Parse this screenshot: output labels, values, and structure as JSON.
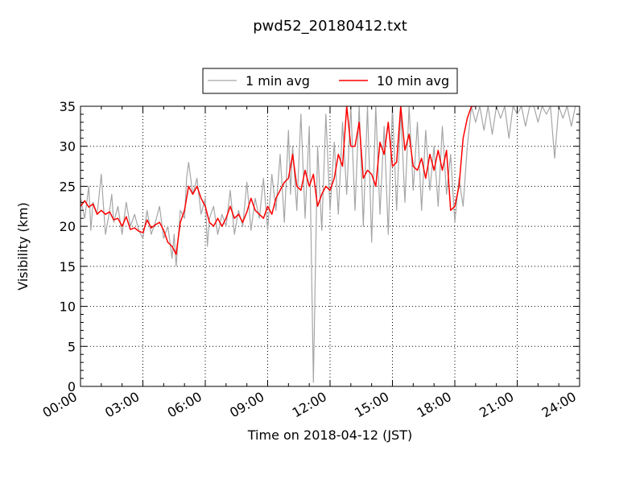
{
  "chart_data": {
    "type": "line",
    "title": "pwd52_20180412.txt",
    "xlabel": "Time on 2018-04-12 (JST)",
    "ylabel": "Visibility (km)",
    "xlim": [
      0,
      24
    ],
    "ylim": [
      0,
      35
    ],
    "x_unit": "hours",
    "grid": true,
    "legend": "top-center",
    "x_ticks": [
      0,
      3,
      6,
      9,
      12,
      15,
      18,
      21,
      24
    ],
    "x_tick_labels": [
      "00:00",
      "03:00",
      "06:00",
      "09:00",
      "12:00",
      "15:00",
      "18:00",
      "21:00",
      "24:00"
    ],
    "y_ticks": [
      0,
      5,
      10,
      15,
      20,
      25,
      30,
      35
    ],
    "y_tick_labels": [
      "0",
      "5",
      "10",
      "15",
      "20",
      "25",
      "30",
      "35"
    ],
    "series": [
      {
        "name": "1 min avg",
        "color": "#a6a6a6",
        "x": [
          0.0,
          0.2,
          0.4,
          0.5,
          0.6,
          0.8,
          1.0,
          1.2,
          1.4,
          1.5,
          1.6,
          1.8,
          2.0,
          2.2,
          2.4,
          2.6,
          2.8,
          3.0,
          3.2,
          3.4,
          3.6,
          3.8,
          4.0,
          4.2,
          4.4,
          4.5,
          4.6,
          4.8,
          5.0,
          5.1,
          5.2,
          5.4,
          5.6,
          5.8,
          6.0,
          6.1,
          6.2,
          6.4,
          6.6,
          6.8,
          7.0,
          7.2,
          7.4,
          7.6,
          7.8,
          8.0,
          8.2,
          8.4,
          8.6,
          8.8,
          9.0,
          9.2,
          9.4,
          9.6,
          9.8,
          10.0,
          10.1,
          10.2,
          10.4,
          10.6,
          10.8,
          11.0,
          11.2,
          11.4,
          11.6,
          11.8,
          12.0,
          12.2,
          12.4,
          12.6,
          12.8,
          13.0,
          13.2,
          13.4,
          13.6,
          13.8,
          14.0,
          14.2,
          14.4,
          14.6,
          14.8,
          15.0,
          15.2,
          15.4,
          15.6,
          15.8,
          16.0,
          16.2,
          16.4,
          16.6,
          16.8,
          17.0,
          17.2,
          17.4,
          17.6,
          17.8,
          18.0,
          18.2,
          18.4,
          18.6,
          18.8,
          19.0,
          19.2,
          19.4,
          19.6,
          19.8,
          20.0,
          20.2,
          20.4,
          20.6,
          20.8,
          21.0,
          21.2,
          21.4,
          21.6,
          21.8,
          22.0,
          22.2,
          22.4,
          22.6,
          22.8,
          23.0,
          23.2,
          23.4,
          23.6,
          23.8,
          24.0
        ],
        "y": [
          23.5,
          21.0,
          25.0,
          19.5,
          23.0,
          21.5,
          26.5,
          19.0,
          22.0,
          24.0,
          20.5,
          22.5,
          19.0,
          23.0,
          20.0,
          21.5,
          19.5,
          18.5,
          22.0,
          19.0,
          20.5,
          22.5,
          18.5,
          20.0,
          16.0,
          19.0,
          15.0,
          22.0,
          21.0,
          26.0,
          28.0,
          24.0,
          26.0,
          21.5,
          23.5,
          17.5,
          21.0,
          22.5,
          19.0,
          21.5,
          20.0,
          24.5,
          19.0,
          22.0,
          20.0,
          25.5,
          19.5,
          23.5,
          21.0,
          26.0,
          19.5,
          26.5,
          22.0,
          29.0,
          20.5,
          32.0,
          24.0,
          30.0,
          22.0,
          34.0,
          21.0,
          32.5,
          0.5,
          30.0,
          19.5,
          34.0,
          22.0,
          30.5,
          21.5,
          33.0,
          24.0,
          35.0,
          22.0,
          35.0,
          20.0,
          35.0,
          18.0,
          35.0,
          21.5,
          32.5,
          19.0,
          35.0,
          22.0,
          34.5,
          23.0,
          35.0,
          24.5,
          33.0,
          22.0,
          32.0,
          24.5,
          30.0,
          22.5,
          32.5,
          24.0,
          29.0,
          20.5,
          26.0,
          22.5,
          30.0,
          35.0,
          33.0,
          35.0,
          32.0,
          35.0,
          31.5,
          35.0,
          33.5,
          35.0,
          31.0,
          35.0,
          34.0,
          35.0,
          32.5,
          35.0,
          35.0,
          33.0,
          35.0,
          34.0,
          35.0,
          28.5,
          35.0,
          33.5,
          35.0,
          32.5,
          35.0,
          35.0
        ]
      },
      {
        "name": "10 min avg",
        "color": "#ff0000",
        "x": [
          0.0,
          0.2,
          0.4,
          0.6,
          0.8,
          1.0,
          1.2,
          1.4,
          1.6,
          1.8,
          2.0,
          2.2,
          2.4,
          2.6,
          2.8,
          3.0,
          3.2,
          3.4,
          3.6,
          3.8,
          4.0,
          4.2,
          4.4,
          4.6,
          4.8,
          5.0,
          5.2,
          5.4,
          5.6,
          5.8,
          6.0,
          6.2,
          6.4,
          6.6,
          6.8,
          7.0,
          7.2,
          7.4,
          7.6,
          7.8,
          8.0,
          8.2,
          8.4,
          8.6,
          8.8,
          9.0,
          9.2,
          9.4,
          9.6,
          9.8,
          10.0,
          10.2,
          10.4,
          10.6,
          10.8,
          11.0,
          11.2,
          11.4,
          11.6,
          11.8,
          12.0,
          12.2,
          12.4,
          12.6,
          12.8,
          13.0,
          13.2,
          13.4,
          13.6,
          13.8,
          14.0,
          14.2,
          14.4,
          14.6,
          14.8,
          15.0,
          15.2,
          15.4,
          15.6,
          15.8,
          16.0,
          16.2,
          16.4,
          16.6,
          16.8,
          17.0,
          17.2,
          17.4,
          17.6,
          17.8,
          18.0,
          18.2,
          18.4,
          18.6,
          18.8,
          19.0
        ],
        "y": [
          22.5,
          23.2,
          22.4,
          22.8,
          21.5,
          22.0,
          21.5,
          21.8,
          20.8,
          21.0,
          20.0,
          21.2,
          19.6,
          19.8,
          19.4,
          19.2,
          20.8,
          19.8,
          20.2,
          20.5,
          19.5,
          18.0,
          17.5,
          16.5,
          20.5,
          22.0,
          25.0,
          24.0,
          25.0,
          23.5,
          22.5,
          20.5,
          20.0,
          21.0,
          20.0,
          21.0,
          22.5,
          21.0,
          21.5,
          20.5,
          21.8,
          23.5,
          22.0,
          21.5,
          21.0,
          22.5,
          21.5,
          23.5,
          24.5,
          25.5,
          26.0,
          29.0,
          25.0,
          24.5,
          27.0,
          25.0,
          26.5,
          22.5,
          24.0,
          25.0,
          24.5,
          26.0,
          29.0,
          27.5,
          35.0,
          30.0,
          30.0,
          33.0,
          26.0,
          27.0,
          26.5,
          25.0,
          30.5,
          29.0,
          33.0,
          27.5,
          28.0,
          35.0,
          29.5,
          31.5,
          27.5,
          27.0,
          28.5,
          26.0,
          29.0,
          27.0,
          29.5,
          27.0,
          29.5,
          22.0,
          22.5,
          25.0,
          31.0,
          33.5,
          35.0,
          35.0
        ]
      }
    ]
  }
}
